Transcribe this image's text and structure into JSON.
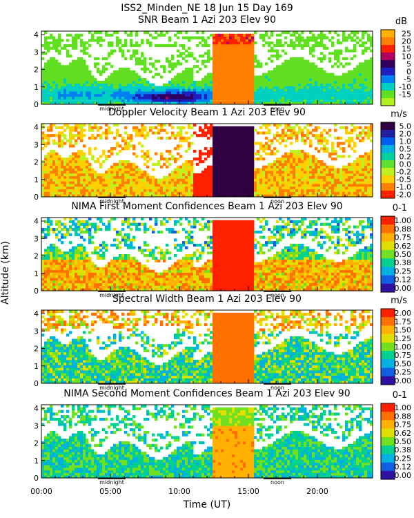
{
  "figure_title": "ISS2_Minden_NE   18 Jun 15 Day 169",
  "chart_data": {
    "type": "heatmap",
    "xlabel": "Time (UT)",
    "ylabel": "Altitude (km)",
    "xlim": [
      0,
      24
    ],
    "ylim": [
      0,
      4.2
    ],
    "x_ticks": [
      "00:00",
      "05:00",
      "10:00",
      "15:00",
      "20:00"
    ],
    "x_tick_values": [
      0,
      5,
      10,
      15,
      20
    ],
    "y_ticks": [
      "0",
      "1",
      "2",
      "3",
      "4"
    ],
    "y_tick_values": [
      0,
      1,
      2,
      3,
      4
    ],
    "day_markers": [
      {
        "label": "midnight",
        "time": 5.1
      },
      {
        "label": "noon",
        "time": 17.1
      }
    ],
    "panels": [
      {
        "title": "SNR Beam 1 Azi 203 Elev 90",
        "units": "dB",
        "colorbar": [
          "25",
          "20",
          "15",
          "10",
          "5",
          "0",
          "-5",
          "-10",
          "-15"
        ],
        "colors": [
          "#FFB000",
          "#FF8000",
          "#FF2000",
          "#B00060",
          "#300060",
          "#2020C0",
          "#0080F0",
          "#00D0C0",
          "#60E020",
          "#B0F020"
        ]
      },
      {
        "title": "Doppler Velocity Beam 1 Azi 203 Elev 90",
        "units": "m/s",
        "colorbar": [
          "5.0",
          "2.0",
          "1.0",
          "0.5",
          "0.2",
          "0.0",
          "-0.2",
          "-0.5",
          "-1.0",
          "-2.0"
        ],
        "colors": [
          "#300040",
          "#2020A0",
          "#0060F0",
          "#00B0E0",
          "#00D0A0",
          "#60E030",
          "#C0F020",
          "#FFD000",
          "#FF8000",
          "#FF2000"
        ]
      },
      {
        "title": "NIMA First Moment Confidences Beam 1 Azi 203 Elev 90",
        "units": "0-1",
        "colorbar": [
          "1.00",
          "0.88",
          "0.75",
          "0.62",
          "0.50",
          "0.38",
          "0.25",
          "0.12",
          "0.00"
        ],
        "colors": [
          "#FF2000",
          "#FF7000",
          "#FFB000",
          "#E0E000",
          "#70E020",
          "#00D090",
          "#00B0E0",
          "#1060E0",
          "#3010A0"
        ]
      },
      {
        "title": "Spectral Width Beam 1 Azi 203 Elev 90",
        "units": "m/s",
        "colorbar": [
          "2.00",
          "1.75",
          "1.50",
          "1.25",
          "1.00",
          "0.75",
          "0.50",
          "0.25",
          "0.00"
        ],
        "colors": [
          "#FF2000",
          "#FF7000",
          "#FFB000",
          "#E0E000",
          "#70E020",
          "#00D090",
          "#00B0E0",
          "#1060E0",
          "#3010A0"
        ]
      },
      {
        "title": "NIMA Second Moment Confidences Beam 1 Azi 203 Elev 90",
        "units": "0-1",
        "colorbar": [
          "1.00",
          "0.88",
          "0.75",
          "0.62",
          "0.50",
          "0.38",
          "0.25",
          "0.12",
          "0.00"
        ],
        "colors": [
          "#FF2000",
          "#FF7000",
          "#FFB000",
          "#E0E000",
          "#70E020",
          "#00D090",
          "#00B0E0",
          "#1060E0",
          "#3010A0"
        ]
      }
    ]
  }
}
